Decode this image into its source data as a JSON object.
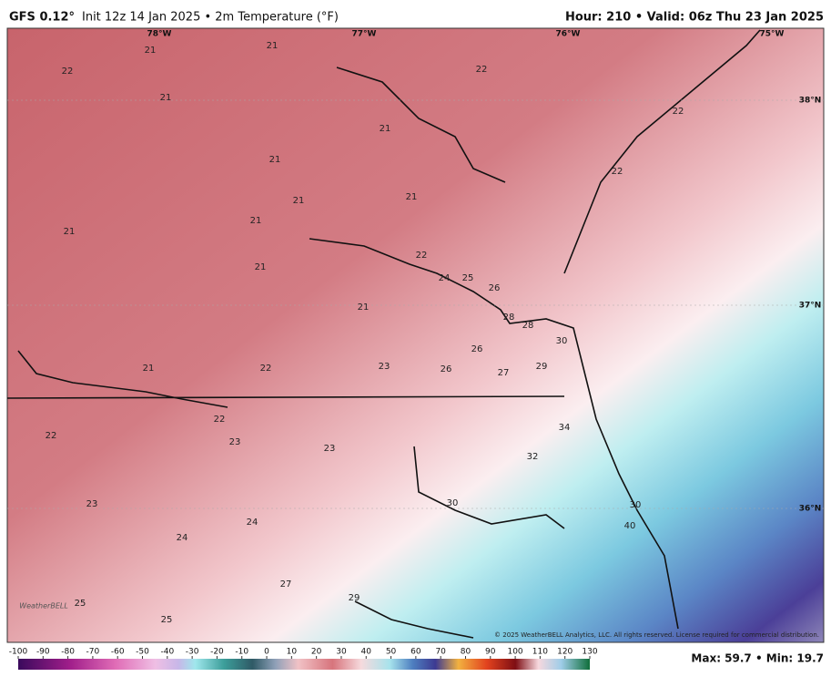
{
  "header": {
    "model": "GFS 0.12°",
    "subtitle": "Init 12z 14 Jan 2025 • 2m Temperature (°F)",
    "valid": "Hour: 210 • Valid: 06z Thu 23 Jan 2025"
  },
  "map": {
    "lon_labels": [
      "78°W",
      "77°W",
      "76°W",
      "75°W"
    ],
    "lat_labels": [
      "38°N",
      "37°N",
      "36°N"
    ],
    "temperatures": [
      21,
      21,
      22,
      22,
      21,
      22,
      21,
      21,
      22,
      21,
      21,
      21,
      21,
      22,
      21,
      24,
      25,
      26,
      21,
      28,
      28,
      30,
      26,
      21,
      22,
      23,
      26,
      27,
      29,
      22,
      34,
      22,
      23,
      23,
      32,
      30,
      30,
      23,
      24,
      40,
      24,
      27,
      29,
      25,
      25
    ],
    "copyright": "© 2025 WeatherBELL Analytics, LLC. All rights reserved. License required for commercial distribution.",
    "logo": "WeatherBELL"
  },
  "legend": {
    "ticks": [
      -100,
      -90,
      -80,
      -70,
      -60,
      -50,
      -40,
      -30,
      -20,
      -10,
      0,
      10,
      20,
      30,
      40,
      50,
      60,
      70,
      80,
      90,
      100,
      110,
      120,
      130
    ]
  },
  "footer": {
    "stats": "Max: 59.7 • Min: 19.7"
  }
}
